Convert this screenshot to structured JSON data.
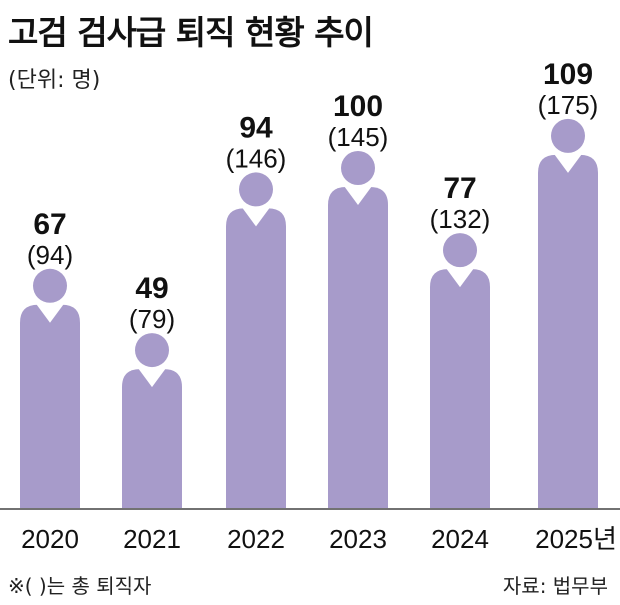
{
  "chart_data": {
    "type": "bar",
    "title": "고검 검사급 퇴직 현황 추이",
    "unit": "(단위: 명)",
    "categories": [
      "2020",
      "2021",
      "2022",
      "2023",
      "2024",
      "2025년"
    ],
    "values": [
      67,
      49,
      94,
      100,
      77,
      109
    ],
    "totals": [
      "(94)",
      "(79)",
      "(146)",
      "(145)",
      "(132)",
      "(175)"
    ],
    "footnote": "※( )는 총 퇴직자",
    "source": "자료: 법무부",
    "bar_color": "#a79bca"
  }
}
